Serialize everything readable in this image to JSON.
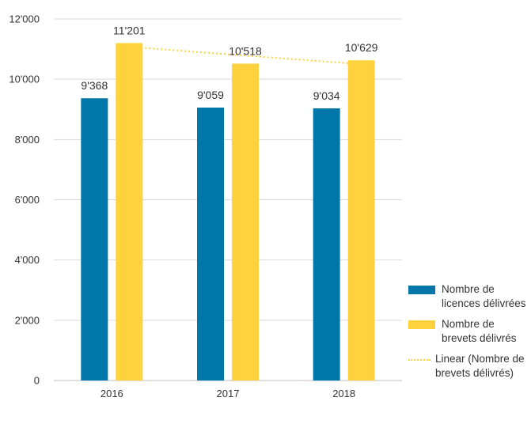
{
  "chart_data": {
    "type": "bar",
    "categories": [
      "2016",
      "2017",
      "2018"
    ],
    "series": [
      {
        "name": "Nombre de licences délivrées",
        "values": [
          9368,
          9059,
          9034
        ],
        "labels": [
          "9'368",
          "9'059",
          "9'034"
        ],
        "color": "#0077A8"
      },
      {
        "name": "Nombre de brevets délivrés",
        "values": [
          11201,
          10518,
          10629
        ],
        "labels": [
          "11'201",
          "10'518",
          "10'629"
        ],
        "color": "#FDD23C"
      }
    ],
    "trendline": {
      "name": "Linear (Nombre de brevets délivrés)",
      "series": "Nombre de brevets délivrés",
      "start": 11075,
      "end": 10497,
      "color": "#FDD23C",
      "style": "dotted"
    },
    "ylim": [
      0,
      12000
    ],
    "yticks": [
      0,
      2000,
      4000,
      6000,
      8000,
      10000,
      12000
    ],
    "ytick_labels": [
      "0",
      "2'000",
      "4'000",
      "6'000",
      "8'000",
      "10'000",
      "12'000"
    ],
    "grid": true,
    "legend_position": "right-bottom",
    "title": "",
    "xlabel": "",
    "ylabel": ""
  }
}
